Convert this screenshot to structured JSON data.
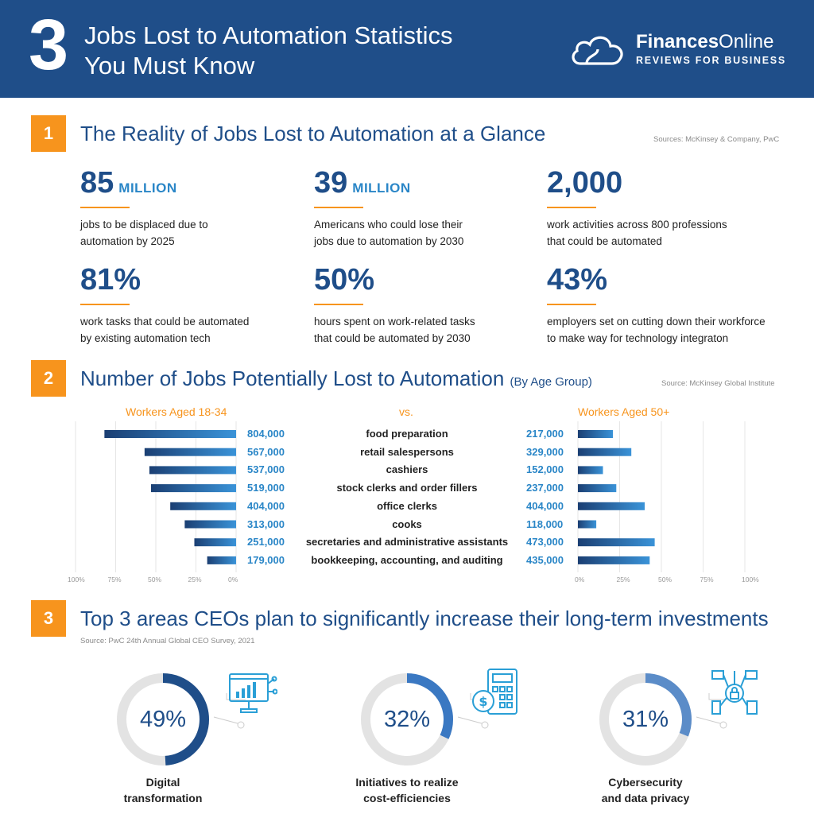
{
  "header": {
    "number": "3",
    "title_line1": "Jobs Lost to Automation Statistics",
    "title_line2": "You Must Know",
    "brand_bold": "Finances",
    "brand_rest": "Online",
    "tagline": "REVIEWS FOR BUSINESS",
    "colors": {
      "primary": "#1f4e89",
      "accent": "#f7941d",
      "link": "#2a86c7"
    }
  },
  "section1": {
    "badge": "1",
    "title": "The Reality of Jobs Lost to Automation at a Glance",
    "source": "Sources: McKinsey & Company, PwC",
    "stats": [
      {
        "value": "85",
        "unit": "MILLION",
        "line1": "jobs to be displaced due to",
        "line2": "automation by 2025"
      },
      {
        "value": "39",
        "unit": "MILLION",
        "line1": "Americans who could lose their",
        "line2": "jobs due to automation by 2030"
      },
      {
        "value": "2,000",
        "unit": "",
        "line1": "work activities across 800 professions",
        "line2": "that could be automated"
      },
      {
        "value": "81%",
        "unit": "",
        "line1": "work tasks that could be automated",
        "line2": "by existing automation tech"
      },
      {
        "value": "50%",
        "unit": "",
        "line1": "hours spent on work-related tasks",
        "line2": "that could be automated by 2030"
      },
      {
        "value": "43%",
        "unit": "",
        "line1": "employers set on cutting down their workforce",
        "line2": "to make way for technology integraton"
      }
    ]
  },
  "section2": {
    "badge": "2",
    "title": "Number of Jobs Potentially Lost to Automation",
    "title_suffix": "(By Age Group)",
    "source": "Source: McKinsey Global Institute",
    "left_label": "Workers Aged 18-34",
    "vs_label": "vs.",
    "right_label": "Workers Aged 50+",
    "left_ticks": [
      "100%",
      "75%",
      "50%",
      "25%",
      "0%"
    ],
    "right_ticks": [
      "0%",
      "25%",
      "50%",
      "75%",
      "100%"
    ]
  },
  "chart_data": {
    "type": "bar",
    "title": "Number of Jobs Potentially Lost to Automation (By Age Group)",
    "categories": [
      "food preparation",
      "retail salespersons",
      "cashiers",
      "stock clerks and order fillers",
      "office clerks",
      "cooks",
      "secretaries and administrative assistants",
      "bookkeeping, accounting, and auditing"
    ],
    "series": [
      {
        "name": "Workers Aged 18-34",
        "values": [
          804000,
          567000,
          537000,
          519000,
          404000,
          313000,
          251000,
          179000
        ],
        "labels": [
          "804,000",
          "567,000",
          "537,000",
          "519,000",
          "404,000",
          "313,000",
          "251,000",
          "179,000"
        ],
        "percent": [
          82,
          57,
          54,
          53,
          41,
          32,
          26,
          18
        ]
      },
      {
        "name": "Workers Aged 50+",
        "values": [
          217000,
          329000,
          152000,
          237000,
          404000,
          118000,
          473000,
          435000
        ],
        "labels": [
          "217,000",
          "329,000",
          "152,000",
          "237,000",
          "404,000",
          "118,000",
          "473,000",
          "435,000"
        ],
        "percent": [
          21,
          32,
          15,
          23,
          40,
          11,
          46,
          43
        ]
      }
    ],
    "xlim": [
      0,
      100
    ],
    "grid": true
  },
  "section3": {
    "badge": "3",
    "title": "Top 3 areas CEOs plan to significantly increase their long-term investments",
    "source": "Source: PwC 24th Annual Global CEO Survey, 2021",
    "items": [
      {
        "value": "49%",
        "fraction": 0.49,
        "line1": "Digital",
        "line2": "transformation",
        "icon": "digital-dashboard-icon",
        "color": "#1f4e89"
      },
      {
        "value": "32%",
        "fraction": 0.32,
        "line1": "Initiatives to realize",
        "line2": "cost-efficiencies",
        "icon": "calculator-icon",
        "color": "#3a78c2"
      },
      {
        "value": "31%",
        "fraction": 0.31,
        "line1": "Cybersecurity",
        "line2": "and data privacy",
        "icon": "security-lock-icon",
        "color": "#5b8cc8"
      }
    ]
  }
}
